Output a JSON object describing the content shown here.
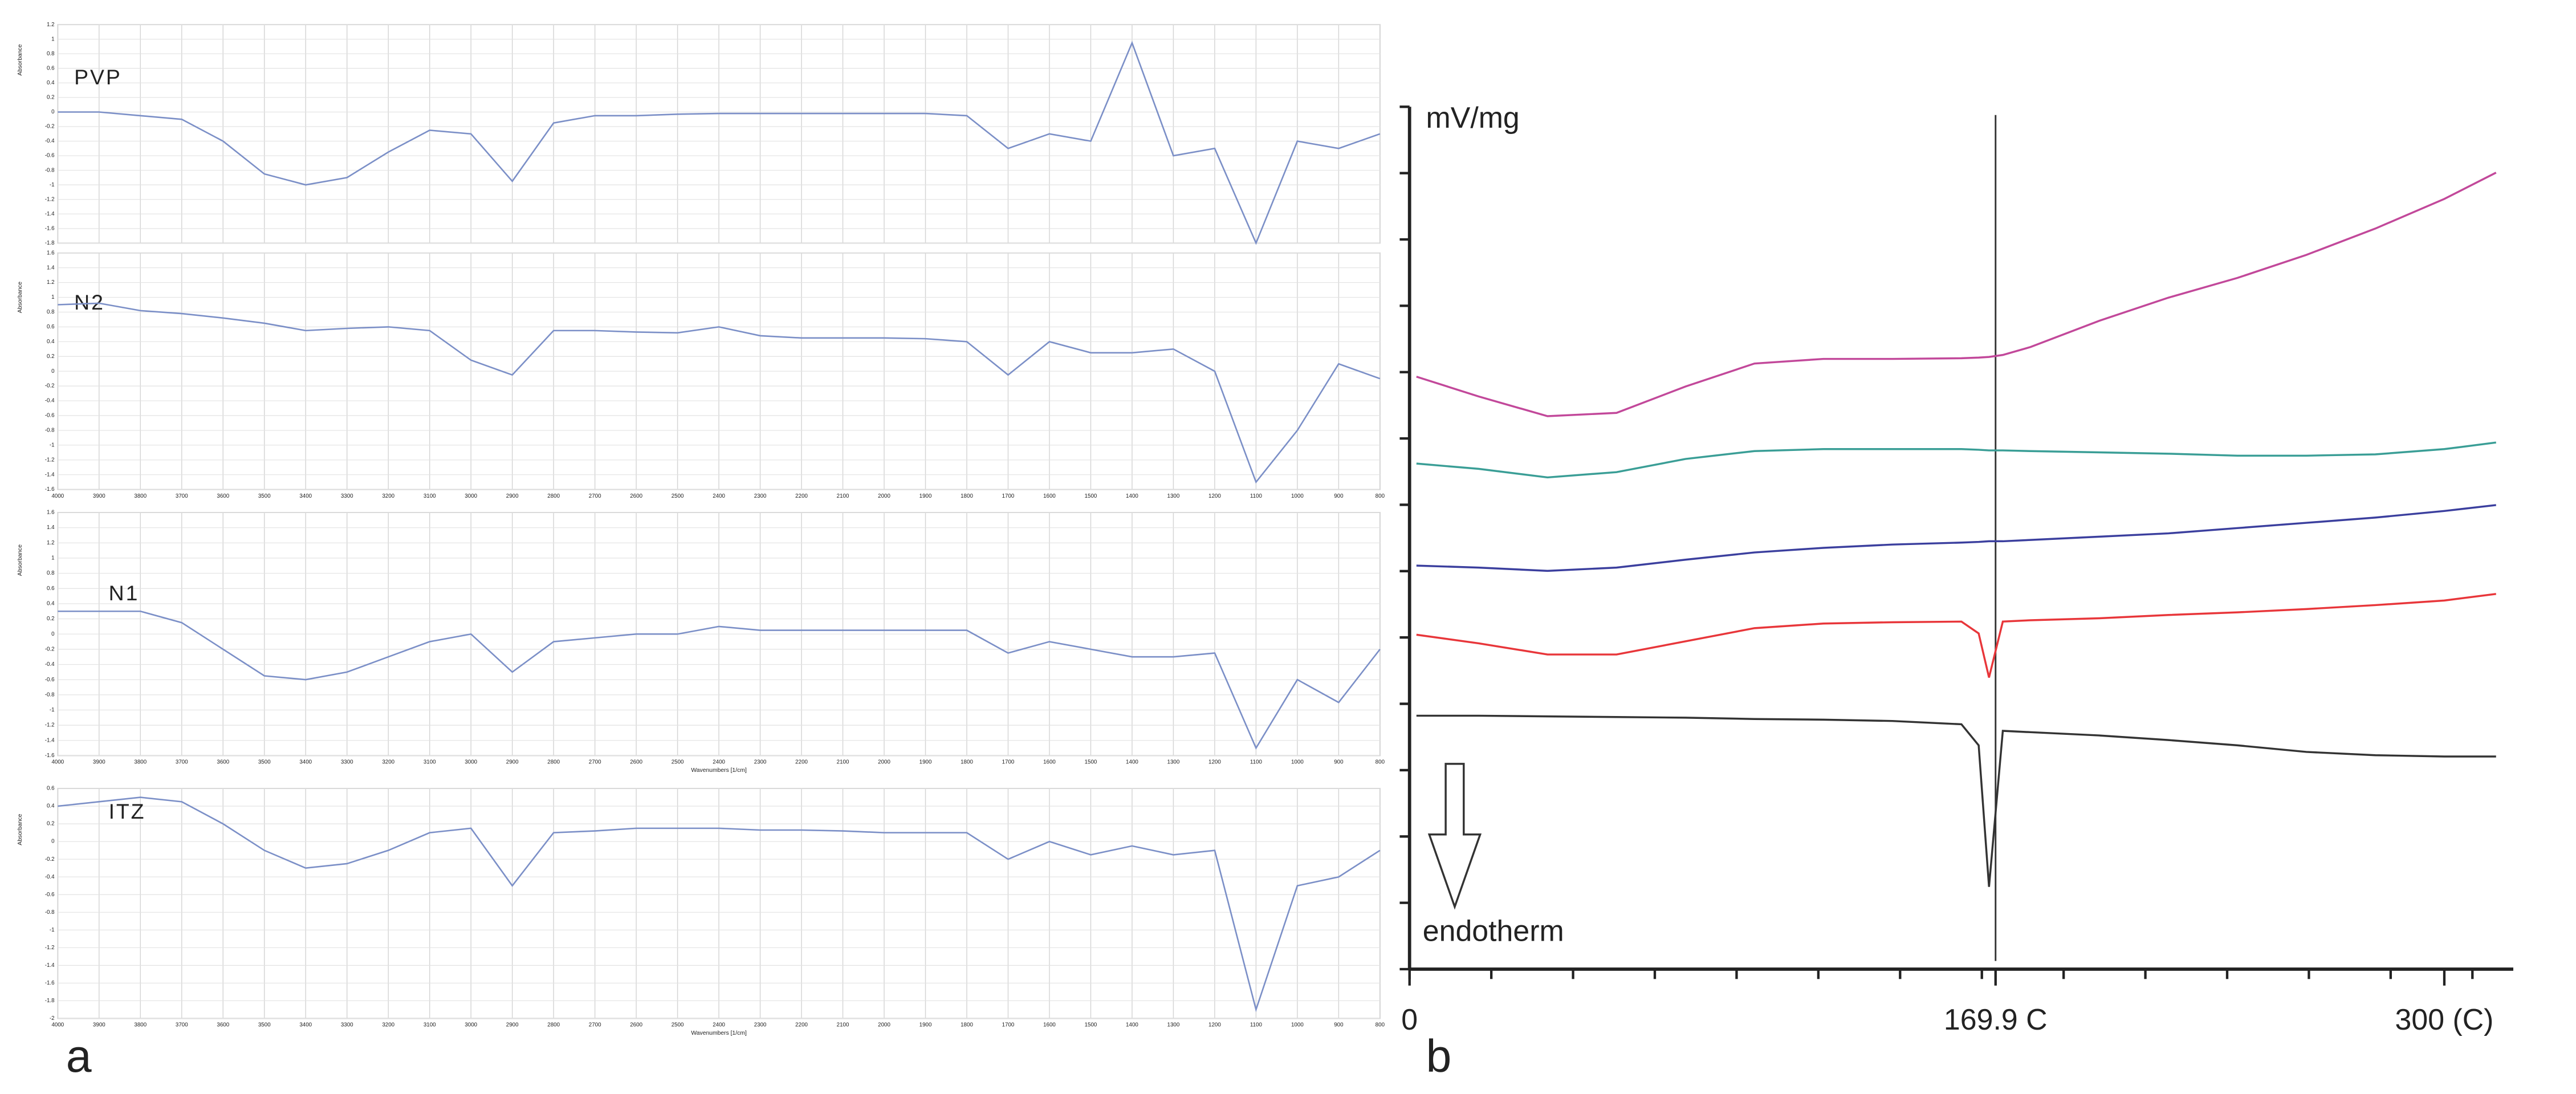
{
  "figure_labels": [
    "a",
    "b"
  ],
  "chart_data": [
    {
      "type": "line",
      "title": "PVP",
      "ylabel": "Absorbance",
      "color": "#7b8fc7",
      "grid": true,
      "show_xtick_labels": false,
      "x": [
        4000,
        3900,
        3800,
        3700,
        3600,
        3500,
        3400,
        3300,
        3200,
        3100,
        3000,
        2900,
        2800,
        2700,
        2600,
        2500,
        2400,
        2300,
        2200,
        2100,
        2000,
        1900,
        1800,
        1700,
        1600,
        1500,
        1400,
        1300,
        1200,
        1100,
        1000,
        900,
        800
      ],
      "values": [
        0,
        0,
        -0.05,
        -0.1,
        -0.4,
        -0.85,
        -1.0,
        -0.9,
        -0.55,
        -0.25,
        -0.3,
        -0.95,
        -0.15,
        -0.05,
        -0.05,
        -0.03,
        -0.02,
        -0.02,
        -0.02,
        -0.02,
        -0.02,
        -0.02,
        -0.05,
        -0.5,
        -0.3,
        -0.4,
        0.95,
        -0.6,
        -0.5,
        -1.8,
        -0.4,
        -0.5,
        -0.3
      ],
      "xlim": [
        4000,
        800
      ],
      "ylim": [
        -1.8,
        1.2
      ],
      "xticks": [
        4000,
        3900,
        3800,
        3700,
        3600,
        3500,
        3400,
        3300,
        3200,
        3100,
        3000,
        2900,
        2800,
        2700,
        2600,
        2500,
        2400,
        2300,
        2200,
        2100,
        2000,
        1900,
        1800,
        1700,
        1600,
        1500,
        1400,
        1300,
        1200,
        1100,
        1000,
        900,
        800
      ],
      "yticks": [
        1.2,
        1,
        0.8,
        0.6,
        0.4,
        0.2,
        0,
        -0.2,
        -0.4,
        -0.6,
        -0.8,
        -1,
        -1.2,
        -1.4,
        -1.6,
        -1.8
      ]
    },
    {
      "type": "line",
      "title": "N2",
      "ylabel": "Absorbance",
      "color": "#7b8fc7",
      "grid": true,
      "x": [
        4000,
        3900,
        3800,
        3700,
        3600,
        3500,
        3400,
        3300,
        3200,
        3100,
        3000,
        2900,
        2800,
        2700,
        2600,
        2500,
        2400,
        2300,
        2200,
        2100,
        2000,
        1900,
        1800,
        1700,
        1600,
        1500,
        1400,
        1300,
        1200,
        1100,
        1000,
        900,
        800
      ],
      "values": [
        0.9,
        0.92,
        0.82,
        0.78,
        0.72,
        0.65,
        0.55,
        0.58,
        0.6,
        0.55,
        0.15,
        -0.05,
        0.55,
        0.55,
        0.53,
        0.52,
        0.6,
        0.48,
        0.45,
        0.45,
        0.45,
        0.44,
        0.4,
        -0.05,
        0.4,
        0.25,
        0.25,
        0.3,
        0.0,
        -1.5,
        -0.8,
        0.1,
        -0.1
      ],
      "xlim": [
        4000,
        800
      ],
      "ylim": [
        -1.6,
        1.6
      ],
      "xticks": [
        4000,
        3900,
        3800,
        3700,
        3600,
        3500,
        3400,
        3300,
        3200,
        3100,
        3000,
        2900,
        2800,
        2700,
        2600,
        2500,
        2400,
        2300,
        2200,
        2100,
        2000,
        1900,
        1800,
        1700,
        1600,
        1500,
        1400,
        1300,
        1200,
        1100,
        1000,
        900,
        800
      ],
      "yticks": [
        1.6,
        1.4,
        1.2,
        1,
        0.8,
        0.6,
        0.4,
        0.2,
        0,
        -0.2,
        -0.4,
        -0.6,
        -0.8,
        -1,
        -1.2,
        -1.4,
        -1.6
      ]
    },
    {
      "type": "line",
      "title": "N1",
      "ylabel": "Absorbance",
      "xlabel": "Wavenumbers [1/cm]",
      "color": "#7b8fc7",
      "grid": true,
      "x": [
        4000,
        3900,
        3800,
        3700,
        3600,
        3500,
        3400,
        3300,
        3200,
        3100,
        3000,
        2900,
        2800,
        2700,
        2600,
        2500,
        2400,
        2300,
        2200,
        2100,
        2000,
        1900,
        1800,
        1700,
        1600,
        1500,
        1400,
        1300,
        1200,
        1100,
        1000,
        900,
        800
      ],
      "values": [
        0.3,
        0.3,
        0.3,
        0.15,
        -0.2,
        -0.55,
        -0.6,
        -0.5,
        -0.3,
        -0.1,
        0,
        -0.5,
        -0.1,
        -0.05,
        0,
        0,
        0.1,
        0.05,
        0.05,
        0.05,
        0.05,
        0.05,
        0.05,
        -0.25,
        -0.1,
        -0.2,
        -0.3,
        -0.3,
        -0.25,
        -1.5,
        -0.6,
        -0.9,
        -0.2
      ],
      "xlim": [
        4000,
        800
      ],
      "ylim": [
        -1.6,
        1.6
      ],
      "xticks": [
        4000,
        3900,
        3800,
        3700,
        3600,
        3500,
        3400,
        3300,
        3200,
        3100,
        3000,
        2900,
        2800,
        2700,
        2600,
        2500,
        2400,
        2300,
        2200,
        2100,
        2000,
        1900,
        1800,
        1700,
        1600,
        1500,
        1400,
        1300,
        1200,
        1100,
        1000,
        900,
        800
      ],
      "yticks": [
        1.6,
        1.4,
        1.2,
        1,
        0.8,
        0.6,
        0.4,
        0.2,
        0,
        -0.2,
        -0.4,
        -0.6,
        -0.8,
        -1,
        -1.2,
        -1.4,
        -1.6
      ]
    },
    {
      "type": "line",
      "title": "ITZ",
      "ylabel": "Absorbance",
      "xlabel": "Wavenumbers [1/cm]",
      "color": "#7b8fc7",
      "grid": true,
      "x": [
        4000,
        3900,
        3800,
        3700,
        3600,
        3500,
        3400,
        3300,
        3200,
        3100,
        3000,
        2900,
        2800,
        2700,
        2600,
        2500,
        2400,
        2300,
        2200,
        2100,
        2000,
        1900,
        1800,
        1700,
        1600,
        1500,
        1400,
        1300,
        1200,
        1100,
        1000,
        900,
        800
      ],
      "values": [
        0.4,
        0.45,
        0.5,
        0.45,
        0.2,
        -0.1,
        -0.3,
        -0.25,
        -0.1,
        0.1,
        0.15,
        -0.5,
        0.1,
        0.12,
        0.15,
        0.15,
        0.15,
        0.13,
        0.13,
        0.12,
        0.1,
        0.1,
        0.1,
        -0.2,
        0.0,
        -0.15,
        -0.05,
        -0.15,
        -0.1,
        -1.9,
        -0.5,
        -0.4,
        -0.1
      ],
      "xlim": [
        4000,
        800
      ],
      "ylim": [
        -2,
        0.6
      ],
      "xticks": [
        4000,
        3900,
        3800,
        3700,
        3600,
        3500,
        3400,
        3300,
        3200,
        3100,
        3000,
        2900,
        2800,
        2700,
        2600,
        2500,
        2400,
        2300,
        2200,
        2100,
        2000,
        1900,
        1800,
        1700,
        1600,
        1500,
        1400,
        1300,
        1200,
        1100,
        1000,
        900,
        800
      ],
      "yticks": [
        0.6,
        0.4,
        0.2,
        0,
        -0.2,
        -0.4,
        -0.6,
        -0.8,
        -1,
        -1.2,
        -1.4,
        -1.6,
        -1.8,
        -2
      ]
    },
    {
      "type": "line",
      "ylabel": "mV/mg",
      "annotation": "endotherm",
      "grid": false,
      "marker_x": 169.9,
      "x": [
        2,
        20,
        40,
        60,
        80,
        100,
        120,
        140,
        160,
        165,
        168,
        172,
        180,
        200,
        220,
        240,
        260,
        280,
        300,
        315
      ],
      "series": [
        {
          "color": "#c2489a",
          "values": [
            9.0,
            8.7,
            8.4,
            8.45,
            8.85,
            9.2,
            9.27,
            9.27,
            9.28,
            9.29,
            9.3,
            9.33,
            9.45,
            9.85,
            10.2,
            10.5,
            10.85,
            11.25,
            11.7,
            12.1
          ]
        },
        {
          "color": "#3a9e96",
          "values": [
            7.68,
            7.6,
            7.47,
            7.55,
            7.75,
            7.87,
            7.9,
            7.9,
            7.9,
            7.89,
            7.88,
            7.88,
            7.87,
            7.85,
            7.83,
            7.8,
            7.8,
            7.82,
            7.9,
            8.0
          ]
        },
        {
          "color": "#3b3f9e",
          "values": [
            6.13,
            6.1,
            6.05,
            6.1,
            6.22,
            6.33,
            6.4,
            6.45,
            6.48,
            6.49,
            6.5,
            6.5,
            6.52,
            6.57,
            6.62,
            6.7,
            6.78,
            6.86,
            6.96,
            7.05
          ]
        },
        {
          "color": "#e8363a",
          "values": [
            5.08,
            4.95,
            4.78,
            4.78,
            4.98,
            5.18,
            5.25,
            5.27,
            5.28,
            5.1,
            4.43,
            5.28,
            5.3,
            5.33,
            5.38,
            5.42,
            5.47,
            5.53,
            5.6,
            5.7
          ]
        },
        {
          "color": "#333333",
          "values": [
            3.85,
            3.85,
            3.84,
            3.83,
            3.82,
            3.8,
            3.79,
            3.77,
            3.72,
            3.4,
            1.25,
            3.62,
            3.6,
            3.55,
            3.48,
            3.4,
            3.3,
            3.25,
            3.23,
            3.23
          ]
        }
      ],
      "xlim": [
        0,
        320
      ],
      "ylim": [
        0,
        13.1
      ],
      "xticks": [
        0,
        {
          "value": 169.9,
          "label": "169.9 C"
        },
        {
          "value": 300,
          "label": "300 (C)"
        }
      ]
    }
  ]
}
